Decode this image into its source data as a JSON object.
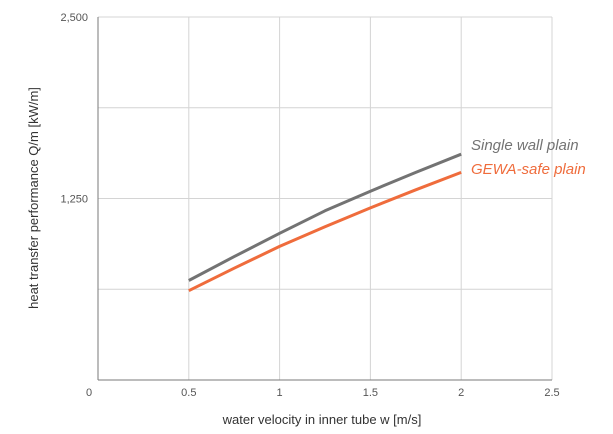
{
  "chart_data": {
    "type": "line",
    "title": "",
    "xlabel": "water velocity in inner tube w [m/s]",
    "ylabel": "heat transfer performance Q/m [kW/m]",
    "xlim": [
      0,
      2.5
    ],
    "ylim": [
      0,
      2500
    ],
    "x_ticks": [
      0.5,
      1,
      1.5,
      2,
      2.5
    ],
    "x_tick_labels": [
      "0.5",
      "1",
      "1.5",
      "2",
      "2.5"
    ],
    "y_ticks": [
      0,
      1250,
      2500
    ],
    "y_tick_labels": [
      "0",
      "1,250",
      "2,500"
    ],
    "y_gridlines": [
      625,
      1250,
      1875,
      2500
    ],
    "origin_label": "0",
    "grid": true,
    "legend": "none",
    "series": [
      {
        "name": "Single wall plain",
        "color": "#737373",
        "x": [
          0.5,
          0.75,
          1,
          1.25,
          1.5,
          1.75,
          2
        ],
        "y": [
          685,
          850,
          1010,
          1165,
          1300,
          1430,
          1555
        ]
      },
      {
        "name": "GEWA-safe plain",
        "color": "#ef6c3c",
        "x": [
          0.5,
          0.75,
          1,
          1.25,
          1.5,
          1.75,
          2
        ],
        "y": [
          615,
          770,
          920,
          1055,
          1185,
          1310,
          1430
        ]
      }
    ]
  }
}
